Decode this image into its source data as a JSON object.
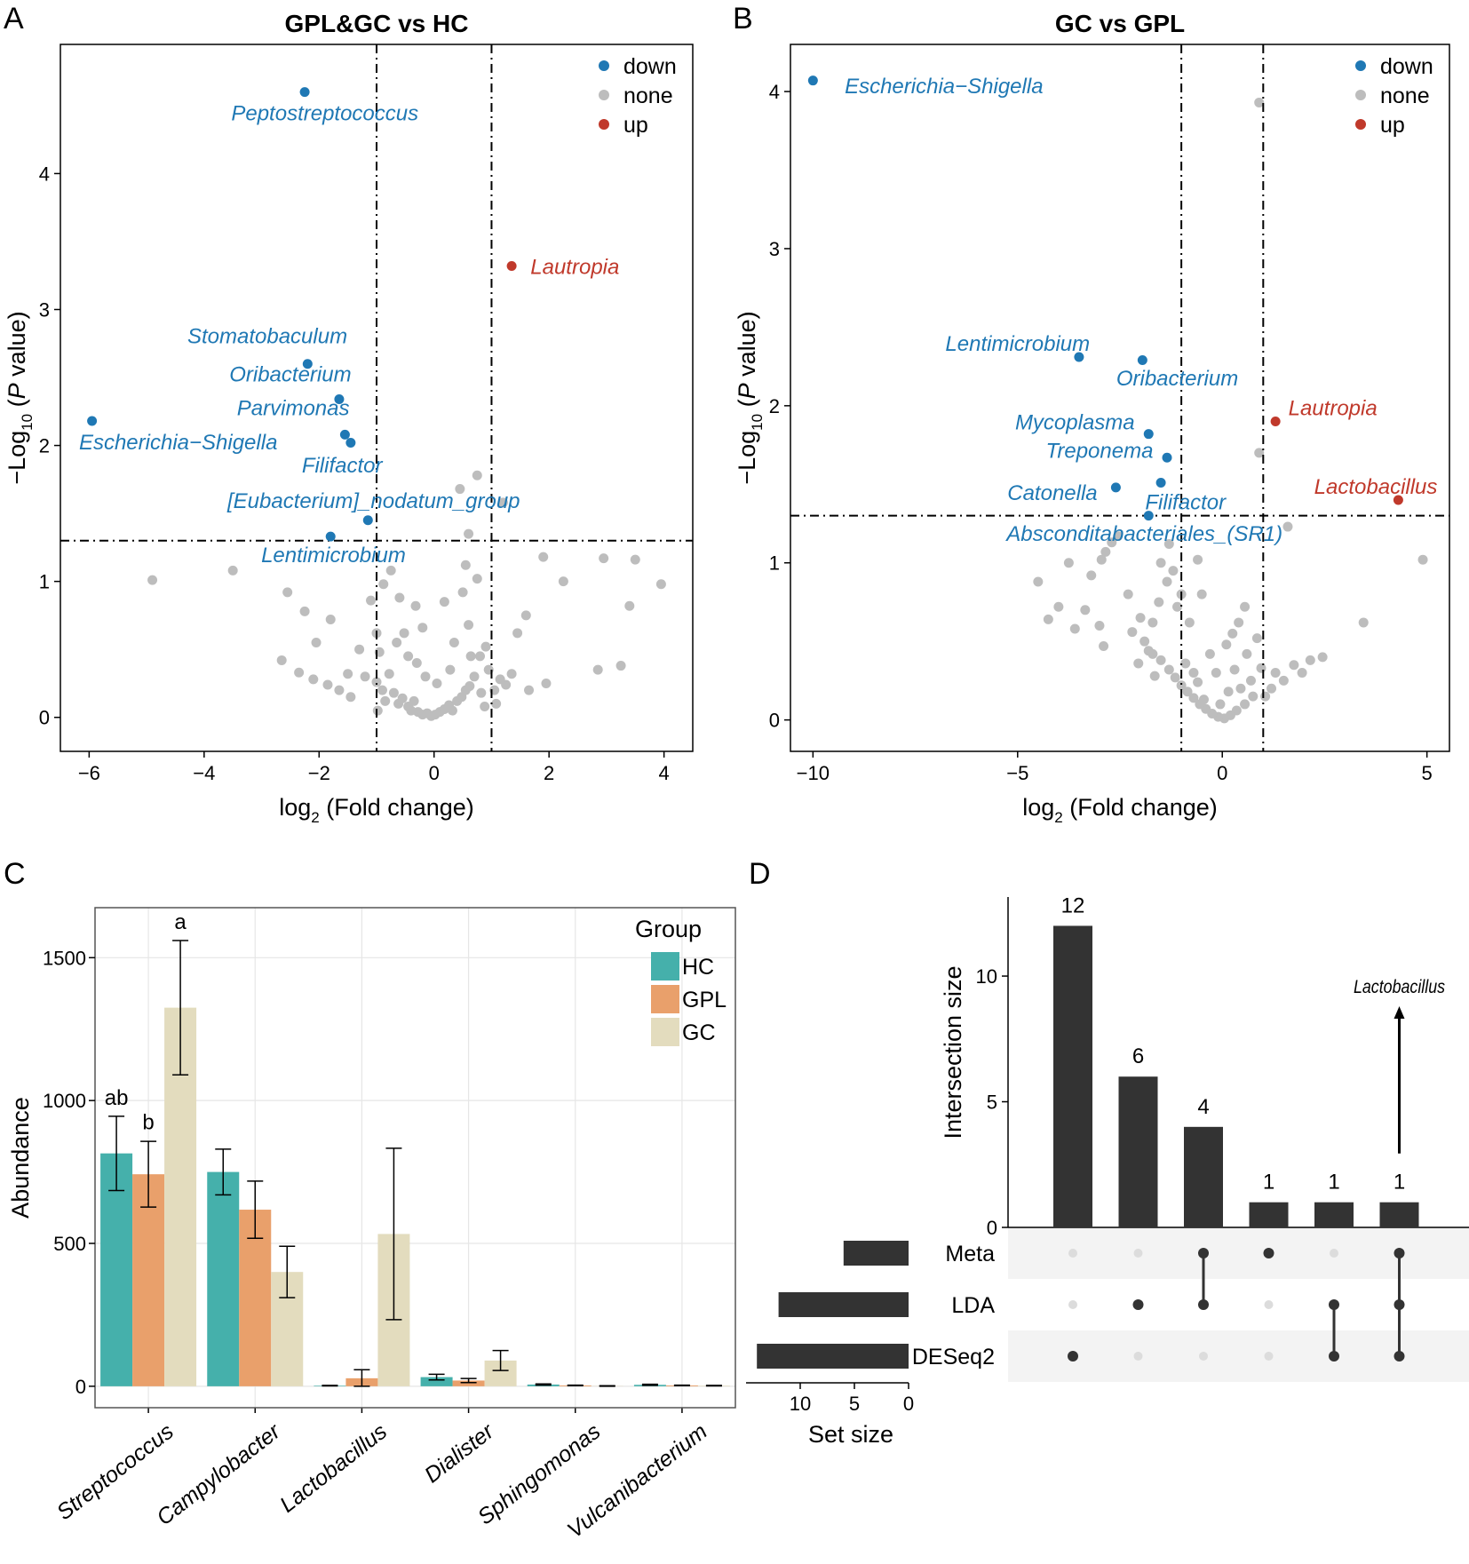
{
  "colors": {
    "down": "#1f78b4",
    "none": "#bdbdbd",
    "up": "#c0392b",
    "hc": "#45b0ab",
    "gpl": "#e9a06b",
    "gc": "#e3dcbe",
    "upset_bar": "#333333",
    "upset_dot_off": "#dcdcdc",
    "upset_row_shade": "#f3f3f3"
  },
  "chart_data": [
    {
      "panel": "A",
      "type": "scatter",
      "title": "GPL&GC  vs HC",
      "xlabel_main": "log",
      "xlabel_sub": "2",
      "xlabel_rest": " (Fold change)",
      "ylabel_pre": "−Log",
      "ylabel_sub": "10",
      "ylabel_mid": " (",
      "ylabel_italic": "P",
      "ylabel_post": " value)",
      "xlim": [
        -6.5,
        4.5
      ],
      "ylim": [
        -0.25,
        4.95
      ],
      "xticks": [
        -6,
        -4,
        -2,
        0,
        2,
        4
      ],
      "yticks": [
        0,
        1,
        2,
        3,
        4
      ],
      "vlines": [
        -1,
        1
      ],
      "hline": 1.3,
      "legend": [
        {
          "label": "down",
          "status": "down"
        },
        {
          "label": "none",
          "status": "none"
        },
        {
          "label": "up",
          "status": "up"
        }
      ],
      "labeled": [
        {
          "name": "Peptostreptococcus",
          "x": -2.25,
          "y": 4.6,
          "status": "down",
          "tx": -1.9,
          "ty": 4.45
        },
        {
          "name": "Lautropia",
          "x": 1.35,
          "y": 3.32,
          "status": "up",
          "tx": 2.45,
          "ty": 3.32
        },
        {
          "name": "Stomatobaculum",
          "x": -2.2,
          "y": 2.6,
          "status": "down",
          "tx": -2.9,
          "ty": 2.81
        },
        {
          "name": "Oribacterium",
          "x": -1.65,
          "y": 2.34,
          "status": "down",
          "tx": -2.5,
          "ty": 2.53
        },
        {
          "name": "Parvimonas",
          "x": -1.55,
          "y": 2.08,
          "status": "down",
          "tx": -2.45,
          "ty": 2.28
        },
        {
          "name": "Escherichia−Shigella",
          "x": -5.95,
          "y": 2.18,
          "status": "down",
          "tx": -4.45,
          "ty": 2.03
        },
        {
          "name": "Filifactor",
          "x": -1.45,
          "y": 2.02,
          "status": "down",
          "tx": -1.6,
          "ty": 1.86
        },
        {
          "name": "[Eubacterium]_nodatum_group",
          "x": -1.15,
          "y": 1.45,
          "status": "down",
          "tx": -1.05,
          "ty": 1.6
        },
        {
          "name": "Lentimicrobium",
          "x": -1.8,
          "y": 1.33,
          "status": "down",
          "tx": -1.75,
          "ty": 1.2
        }
      ],
      "background": [
        [
          -4.9,
          1.01
        ],
        [
          -3.5,
          1.08
        ],
        [
          -2.55,
          0.92
        ],
        [
          -2.25,
          0.78
        ],
        [
          -2.05,
          0.55
        ],
        [
          -2.65,
          0.42
        ],
        [
          -1.8,
          0.72
        ],
        [
          -1.3,
          0.5
        ],
        [
          -1.1,
          0.86
        ],
        [
          -1.0,
          0.62
        ],
        [
          -0.95,
          0.48
        ],
        [
          -0.88,
          0.98
        ],
        [
          -0.75,
          1.08
        ],
        [
          -0.6,
          0.88
        ],
        [
          -0.52,
          0.62
        ],
        [
          -0.45,
          0.45
        ],
        [
          -0.32,
          0.82
        ],
        [
          -0.2,
          0.66
        ],
        [
          0.18,
          0.85
        ],
        [
          0.35,
          0.55
        ],
        [
          0.5,
          0.92
        ],
        [
          0.6,
          0.68
        ],
        [
          0.75,
          1.02
        ],
        [
          0.8,
          0.45
        ],
        [
          0.45,
          1.68
        ],
        [
          0.55,
          1.12
        ],
        [
          0.6,
          1.35
        ],
        [
          0.75,
          1.78
        ],
        [
          0.9,
          0.52
        ],
        [
          1.15,
          0.28
        ],
        [
          1.2,
          1.58
        ],
        [
          1.45,
          0.62
        ],
        [
          1.6,
          0.75
        ],
        [
          1.9,
          1.18
        ],
        [
          2.25,
          1.0
        ],
        [
          2.85,
          0.35
        ],
        [
          2.95,
          1.17
        ],
        [
          3.25,
          0.38
        ],
        [
          3.4,
          0.82
        ],
        [
          3.5,
          1.16
        ],
        [
          3.95,
          0.98
        ],
        [
          1.65,
          0.2
        ],
        [
          1.95,
          0.25
        ],
        [
          -1.2,
          0.3
        ],
        [
          -1.0,
          0.26
        ],
        [
          -0.9,
          0.2
        ],
        [
          -0.85,
          0.12
        ],
        [
          -0.7,
          0.18
        ],
        [
          -0.62,
          0.1
        ],
        [
          -0.55,
          0.14
        ],
        [
          -0.45,
          0.08
        ],
        [
          -0.4,
          0.05
        ],
        [
          -0.35,
          0.12
        ],
        [
          -0.28,
          0.04
        ],
        [
          -0.2,
          0.02
        ],
        [
          -0.12,
          0.03
        ],
        [
          -0.05,
          0.01
        ],
        [
          0.02,
          0.02
        ],
        [
          0.1,
          0.04
        ],
        [
          0.18,
          0.06
        ],
        [
          0.26,
          0.09
        ],
        [
          0.32,
          0.05
        ],
        [
          0.4,
          0.12
        ],
        [
          0.48,
          0.15
        ],
        [
          0.55,
          0.2
        ],
        [
          0.62,
          0.23
        ],
        [
          0.7,
          0.3
        ],
        [
          0.82,
          0.18
        ],
        [
          0.95,
          0.35
        ],
        [
          1.05,
          0.2
        ],
        [
          1.25,
          0.24
        ],
        [
          1.35,
          0.32
        ],
        [
          -1.5,
          0.32
        ],
        [
          -1.65,
          0.2
        ],
        [
          -1.85,
          0.24
        ],
        [
          -2.1,
          0.28
        ],
        [
          -2.35,
          0.33
        ],
        [
          -0.3,
          0.4
        ],
        [
          -0.15,
          0.3
        ],
        [
          0.05,
          0.25
        ],
        [
          0.28,
          0.35
        ],
        [
          -1.45,
          0.15
        ],
        [
          -0.78,
          0.32
        ],
        [
          -0.98,
          0.05
        ],
        [
          1.08,
          0.1
        ],
        [
          0.88,
          0.08
        ],
        [
          0.64,
          0.45
        ],
        [
          -0.65,
          0.55
        ]
      ]
    },
    {
      "panel": "B",
      "type": "scatter",
      "title": "GC vs GPL",
      "xlabel_main": "log",
      "xlabel_sub": "2",
      "xlabel_rest": " (Fold change)",
      "ylabel_pre": "−Log",
      "ylabel_sub": "10",
      "ylabel_mid": " (",
      "ylabel_italic": "P",
      "ylabel_post": " value)",
      "xlim": [
        -10.55,
        5.55
      ],
      "ylim": [
        -0.2,
        4.3
      ],
      "xticks": [
        -10,
        -5,
        0,
        5
      ],
      "yticks": [
        0,
        1,
        2,
        3,
        4
      ],
      "vlines": [
        -1,
        1
      ],
      "hline": 1.3,
      "legend": [
        {
          "label": "down",
          "status": "down"
        },
        {
          "label": "none",
          "status": "none"
        },
        {
          "label": "up",
          "status": "up"
        }
      ],
      "labeled": [
        {
          "name": "Escherichia−Shigella",
          "x": -10.0,
          "y": 4.07,
          "status": "down",
          "tx": -6.8,
          "ty": 4.04
        },
        {
          "name": "Lentimicrobium",
          "x": -3.5,
          "y": 2.31,
          "status": "down",
          "tx": -5.0,
          "ty": 2.4
        },
        {
          "name": "Oribacterium",
          "x": -1.95,
          "y": 2.29,
          "status": "down",
          "tx": -1.1,
          "ty": 2.18
        },
        {
          "name": "Lautropia",
          "x": 1.3,
          "y": 1.9,
          "status": "up",
          "tx": 2.7,
          "ty": 1.99
        },
        {
          "name": "Mycoplasma",
          "x": -1.8,
          "y": 1.82,
          "status": "down",
          "tx": -3.6,
          "ty": 1.9
        },
        {
          "name": "Treponema",
          "x": -1.35,
          "y": 1.67,
          "status": "down",
          "tx": -3.0,
          "ty": 1.72
        },
        {
          "name": "Lactobacillus",
          "x": 4.3,
          "y": 1.4,
          "status": "up",
          "tx": 3.75,
          "ty": 1.49
        },
        {
          "name": "Catonella",
          "x": -2.6,
          "y": 1.48,
          "status": "down",
          "tx": -4.15,
          "ty": 1.45
        },
        {
          "name": "Filifactor",
          "x": -1.5,
          "y": 1.51,
          "status": "down",
          "tx": -0.9,
          "ty": 1.39
        },
        {
          "name": "Absconditabacteriales_(SR1)",
          "x": -1.8,
          "y": 1.3,
          "status": "down",
          "tx": -1.9,
          "ty": 1.19
        }
      ],
      "background": [
        [
          0.9,
          3.93
        ],
        [
          0.9,
          1.7
        ],
        [
          1.6,
          1.23
        ],
        [
          4.9,
          1.02
        ],
        [
          3.45,
          0.62
        ],
        [
          2.45,
          0.4
        ],
        [
          2.15,
          0.38
        ],
        [
          1.95,
          0.3
        ],
        [
          1.75,
          0.35
        ],
        [
          1.5,
          0.25
        ],
        [
          1.2,
          0.2
        ],
        [
          0.75,
          0.15
        ],
        [
          0.55,
          0.1
        ],
        [
          0.35,
          0.06
        ],
        [
          0.2,
          0.03
        ],
        [
          0.05,
          0.01
        ],
        [
          -0.1,
          0.02
        ],
        [
          -0.25,
          0.04
        ],
        [
          -0.4,
          0.07
        ],
        [
          -0.55,
          0.1
        ],
        [
          -0.7,
          0.14
        ],
        [
          -0.85,
          0.18
        ],
        [
          -1.0,
          0.22
        ],
        [
          -1.15,
          0.27
        ],
        [
          -1.3,
          0.32
        ],
        [
          -1.5,
          0.38
        ],
        [
          -1.7,
          0.42
        ],
        [
          -1.9,
          0.5
        ],
        [
          -2.2,
          0.56
        ],
        [
          -2.9,
          0.47
        ],
        [
          -3.0,
          0.6
        ],
        [
          -3.35,
          0.7
        ],
        [
          -3.6,
          0.58
        ],
        [
          -4.0,
          0.72
        ],
        [
          -4.25,
          0.64
        ],
        [
          -4.5,
          0.88
        ],
        [
          -3.75,
          1.0
        ],
        [
          -3.2,
          0.92
        ],
        [
          -2.85,
          1.07
        ],
        [
          -2.7,
          1.13
        ],
        [
          -2.55,
          1.17
        ],
        [
          -2.95,
          1.02
        ],
        [
          -2.3,
          0.8
        ],
        [
          -2.0,
          0.65
        ],
        [
          -1.55,
          0.75
        ],
        [
          -1.35,
          0.88
        ],
        [
          -1.2,
          0.95
        ],
        [
          -1.0,
          0.8
        ],
        [
          -1.5,
          1.0
        ],
        [
          -1.3,
          1.12
        ],
        [
          -1.1,
          0.72
        ],
        [
          -0.6,
          1.02
        ],
        [
          -0.8,
          0.62
        ],
        [
          -0.5,
          0.8
        ],
        [
          0.1,
          0.48
        ],
        [
          0.25,
          0.55
        ],
        [
          0.6,
          0.42
        ],
        [
          0.85,
          0.52
        ],
        [
          0.4,
          0.62
        ],
        [
          0.55,
          0.72
        ],
        [
          -0.3,
          0.42
        ],
        [
          -0.15,
          0.3
        ],
        [
          0.3,
          0.32
        ],
        [
          0.7,
          0.25
        ],
        [
          1.05,
          0.15
        ],
        [
          -0.6,
          0.24
        ],
        [
          -0.9,
          0.36
        ],
        [
          0.95,
          0.33
        ],
        [
          -1.65,
          0.28
        ],
        [
          -2.05,
          0.36
        ],
        [
          -1.8,
          0.44
        ],
        [
          1.3,
          0.3
        ],
        [
          0.15,
          0.18
        ],
        [
          -0.45,
          0.13
        ],
        [
          0.45,
          0.2
        ],
        [
          -1.7,
          0.62
        ],
        [
          -0.05,
          0.1
        ],
        [
          -0.7,
          0.3
        ]
      ]
    },
    {
      "panel": "C",
      "type": "bar",
      "ylabel": "Abundance",
      "ylim": [
        -75,
        1675
      ],
      "yticks": [
        0,
        500,
        1000,
        1500
      ],
      "categories": [
        "Streptococcus",
        "Campylobacter",
        "Lactobacillus",
        "Dialister",
        "Sphingomonas",
        "Vulcanibacterium"
      ],
      "legend_title": "Group",
      "series": [
        {
          "name": "HC",
          "color_key": "hc",
          "values": [
            815,
            750,
            2,
            32,
            6,
            5
          ],
          "errors": [
            130,
            80,
            1,
            10,
            2,
            2
          ]
        },
        {
          "name": "GPL",
          "color_key": "gpl",
          "values": [
            742,
            618,
            28,
            20,
            3,
            3
          ],
          "errors": [
            115,
            100,
            30,
            7,
            1,
            1
          ]
        },
        {
          "name": "GC",
          "color_key": "gc",
          "values": [
            1325,
            400,
            533,
            90,
            1,
            2
          ],
          "errors": [
            235,
            90,
            300,
            35,
            1,
            1
          ]
        }
      ],
      "annotations": [
        {
          "text": "ab",
          "category": 0,
          "series": 0,
          "value": 985
        },
        {
          "text": "b",
          "category": 0,
          "series": 1,
          "value": 900
        },
        {
          "text": "a",
          "category": 0,
          "series": 2,
          "value": 1600
        }
      ]
    },
    {
      "panel": "D",
      "type": "bar",
      "subtype": "upset",
      "ylabel": "Intersection size",
      "ylim": [
        0,
        13.5
      ],
      "yticks": [
        0,
        5,
        10
      ],
      "intersections": [
        {
          "size": 12,
          "sets": [
            "DESeq2"
          ]
        },
        {
          "size": 6,
          "sets": [
            "LDA"
          ]
        },
        {
          "size": 4,
          "sets": [
            "Meta",
            "LDA"
          ]
        },
        {
          "size": 1,
          "sets": [
            "Meta"
          ]
        },
        {
          "size": 1,
          "sets": [
            "LDA",
            "DESeq2"
          ]
        },
        {
          "size": 1,
          "sets": [
            "Meta",
            "LDA",
            "DESeq2"
          ]
        }
      ],
      "sets": [
        {
          "name": "Meta",
          "size": 6
        },
        {
          "name": "LDA",
          "size": 12
        },
        {
          "name": "DESeq2",
          "size": 14
        }
      ],
      "setsize_label": "Set size",
      "setsize_ticks": [
        10,
        5,
        0
      ],
      "setsize_max": 15,
      "annotation": {
        "text": "Lactobacillus",
        "intersection": 5
      }
    }
  ],
  "panel_letters": [
    "A",
    "B",
    "C",
    "D"
  ]
}
